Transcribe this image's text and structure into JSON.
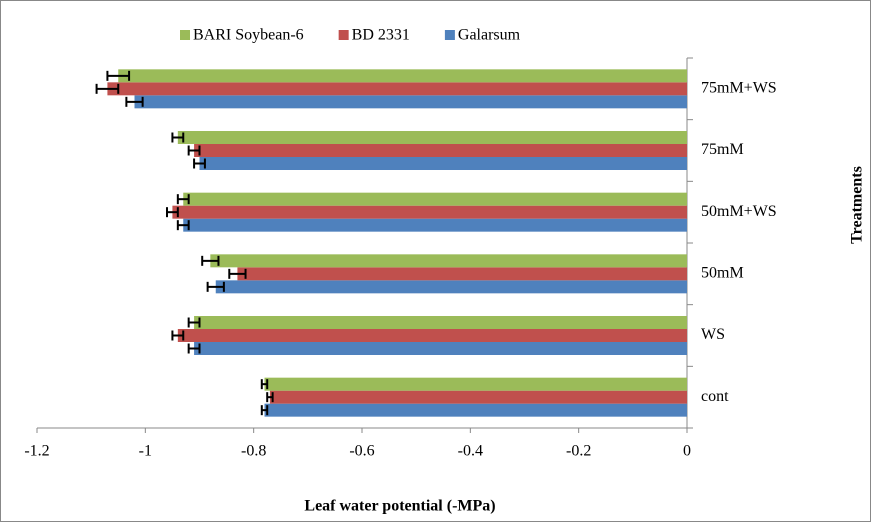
{
  "chart_data": {
    "type": "bar",
    "orientation": "horizontal",
    "x_label": "Leaf water potential (-MPa)",
    "y_label": "Treatments",
    "categories": [
      "cont",
      "WS",
      "50mM",
      "50mM+WS",
      "75mM",
      "75mM+WS"
    ],
    "series": [
      {
        "name": "Galarsum",
        "color": "#4f81bd",
        "values": [
          -0.78,
          -0.91,
          -0.87,
          -0.93,
          -0.9,
          -1.02
        ],
        "errors": [
          0.005,
          0.01,
          0.015,
          0.01,
          0.01,
          0.015
        ]
      },
      {
        "name": "BD 2331",
        "color": "#c0504d",
        "values": [
          -0.77,
          -0.94,
          -0.83,
          -0.95,
          -0.91,
          -1.07
        ],
        "errors": [
          0.005,
          0.01,
          0.015,
          0.01,
          0.01,
          0.02
        ]
      },
      {
        "name": "BARI Soybean-6",
        "color": "#9bbb59",
        "values": [
          -0.78,
          -0.91,
          -0.88,
          -0.93,
          -0.94,
          -1.05
        ],
        "errors": [
          0.005,
          0.01,
          0.015,
          0.01,
          0.01,
          0.02
        ]
      }
    ],
    "xlim": [
      -1.2,
      0
    ],
    "xticks": [
      -1.2,
      -1,
      -0.8,
      -0.6,
      -0.4,
      -0.2,
      0
    ]
  }
}
